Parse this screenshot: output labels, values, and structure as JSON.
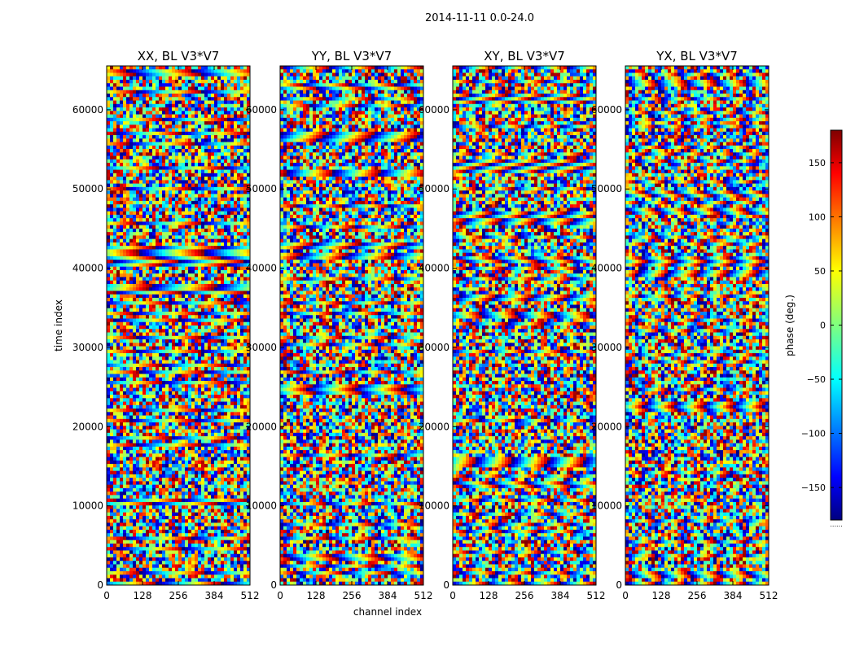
{
  "figure": {
    "suptitle": "2014-11-11 0.0-24.0"
  },
  "chart_data": {
    "type": "heatmap",
    "description_units": "phase (deg.) of visibility vs channel index and time index",
    "xlabel": "channel index",
    "ylabel": "time index",
    "xlim": [
      0,
      512
    ],
    "ylim": [
      0,
      65536
    ],
    "xticks": [
      "0",
      "128",
      "256",
      "384",
      "512"
    ],
    "yticks": [
      "0",
      "10000",
      "20000",
      "30000",
      "40000",
      "50000",
      "60000"
    ],
    "panels": [
      {
        "title": "XX, BL V3*V7"
      },
      {
        "title": "YY, BL V3*V7"
      },
      {
        "title": "XY, BL V3*V7"
      },
      {
        "title": "YX, BL V3*V7"
      }
    ],
    "colorbar": {
      "label": "phase (deg.)",
      "range": [
        -180,
        180
      ],
      "ticks": [
        "150",
        "100",
        "50",
        "0",
        "−50",
        "−100",
        "−150"
      ],
      "tick_values": [
        150,
        100,
        50,
        0,
        -50,
        -100,
        -150
      ],
      "colormap": "jet",
      "extra_label": "......"
    }
  }
}
